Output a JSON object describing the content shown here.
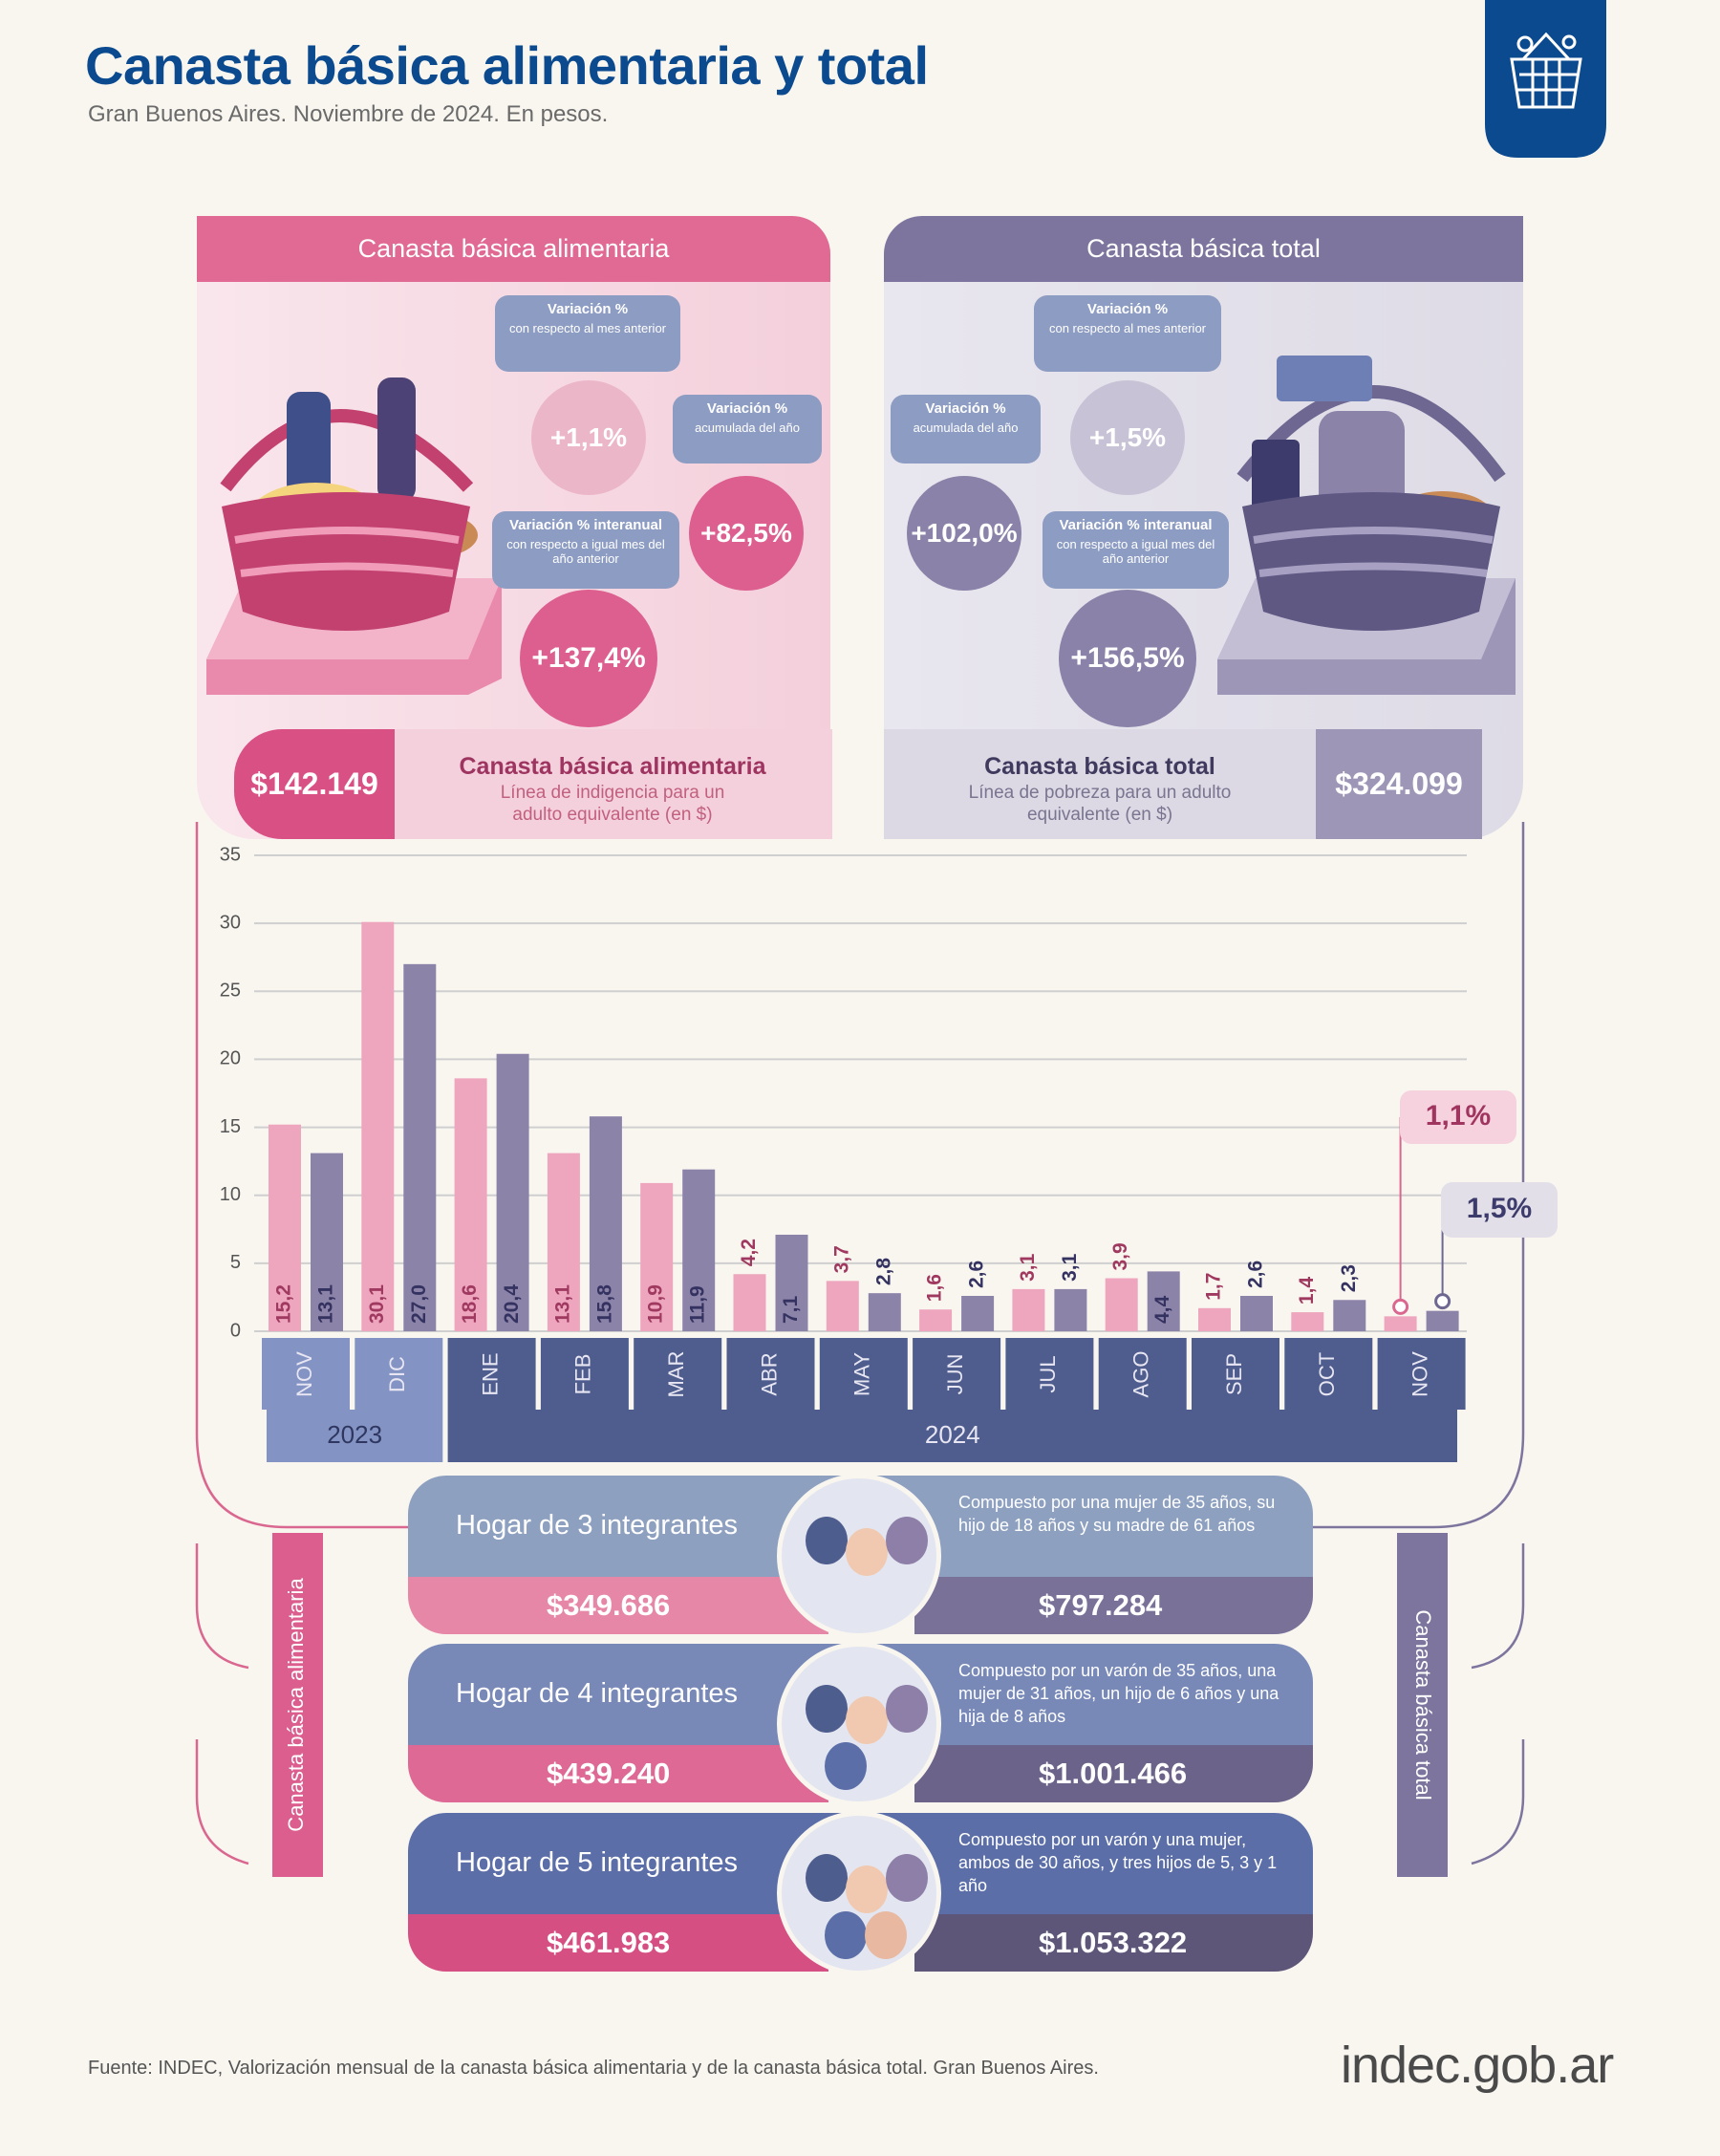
{
  "header": {
    "title": "Canasta básica alimentaria y total",
    "subtitle": "Gran Buenos Aires. Noviembre de 2024. En pesos."
  },
  "panels": [
    {
      "title": "Canasta básica alimentaria",
      "variations": [
        {
          "title": "Variación %",
          "note": "con respecto al mes anterior",
          "value": "+1,1%"
        },
        {
          "title": "Variación %",
          "note": "acumulada del año",
          "value": "+82,5%"
        },
        {
          "title": "Variación % interanual",
          "note": "con respecto a igual mes del año anterior",
          "value": "+137,4%"
        }
      ],
      "amount": "$142.149",
      "label": "Canasta básica alimentaria",
      "note": "Línea de indigencia para un adulto equivalente (en $)"
    },
    {
      "title": "Canasta básica total",
      "variations": [
        {
          "title": "Variación %",
          "note": "con respecto al mes anterior",
          "value": "+1,5%"
        },
        {
          "title": "Variación %",
          "note": "acumulada del año",
          "value": "+102,0%"
        },
        {
          "title": "Variación % interanual",
          "note": "con respecto a igual mes del año anterior",
          "value": "+156,5%"
        }
      ],
      "amount": "$324.099",
      "label": "Canasta básica total",
      "note": "Línea de pobreza para un adulto equivalente (en $)"
    }
  ],
  "chart_data": {
    "type": "bar",
    "categories": [
      "NOV",
      "DIC",
      "ENE",
      "FEB",
      "MAR",
      "ABR",
      "MAY",
      "JUN",
      "JUL",
      "AGO",
      "SEP",
      "OCT",
      "NOV"
    ],
    "category_years": [
      "2023",
      "2023",
      "2024",
      "2024",
      "2024",
      "2024",
      "2024",
      "2024",
      "2024",
      "2024",
      "2024",
      "2024",
      "2024"
    ],
    "series": [
      {
        "name": "Canasta básica alimentaria",
        "color": "#eea6bf",
        "values": [
          15.2,
          30.1,
          18.6,
          13.1,
          10.9,
          4.2,
          3.7,
          1.6,
          3.1,
          3.9,
          1.7,
          1.4,
          1.1
        ],
        "value_labels": [
          "15,2",
          "30,1",
          "18,6",
          "13,1",
          "10,9",
          "4,2",
          "3,7",
          "1,6",
          "3,1",
          "3,9",
          "1,7",
          "1,4",
          "1,1%"
        ]
      },
      {
        "name": "Canasta básica total",
        "color": "#8c83a9",
        "values": [
          13.1,
          27.0,
          20.4,
          15.8,
          11.9,
          7.1,
          2.8,
          2.6,
          3.1,
          4.4,
          2.6,
          2.3,
          1.5
        ],
        "value_labels": [
          "13,1",
          "27,0",
          "20,4",
          "15,8",
          "11,9",
          "7,1",
          "2,8",
          "2,6",
          "3,1",
          "4,4",
          "2,6",
          "2,3",
          "1,5%"
        ]
      }
    ],
    "ylim": [
      0,
      35
    ],
    "yticks": [
      0,
      5,
      10,
      15,
      20,
      25,
      30,
      35
    ],
    "grid": true,
    "highlight_last": true
  },
  "households": [
    {
      "title": "Hogar de 3 integrantes",
      "description": "Compuesto por una mujer de 35 años, su hijo de 18 años y su madre de 61 años",
      "cba": "$349.686",
      "cbt": "$797.284"
    },
    {
      "title": "Hogar de 4 integrantes",
      "description": "Compuesto por un varón de 35 años, una mujer de 31 años, un hijo de 6 años y una hija de 8 años",
      "cba": "$439.240",
      "cbt": "$1.001.466"
    },
    {
      "title": "Hogar de 5 integrantes",
      "description": "Compuesto por un varón y una mujer, ambos de 30 años, y tres hijos de 5, 3 y 1 año",
      "cba": "$461.983",
      "cbt": "$1.053.322"
    }
  ],
  "footer": {
    "source": "Fuente: INDEC, Valorización mensual de la canasta básica alimentaria y de la canasta básica total. Gran Buenos Aires.",
    "logo": "indec.gob.ar"
  }
}
